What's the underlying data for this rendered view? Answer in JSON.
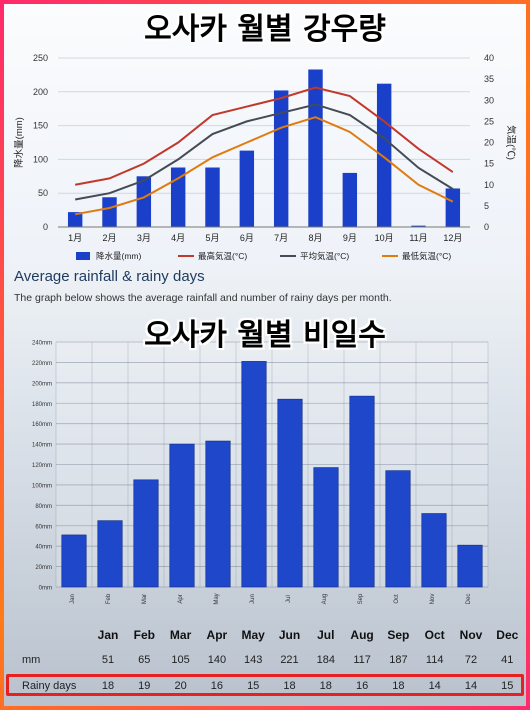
{
  "captions": {
    "top": "오사카 월별 강우량",
    "bottom": "오사카 월별 비일수"
  },
  "section": {
    "title": "Average rainfall & rainy days",
    "description": "The graph below shows the average rainfall and number of rainy days per month."
  },
  "colors": {
    "bar": "#1a3fc8",
    "max_temp": "#c0392b",
    "avg_temp": "#444b55",
    "min_temp": "#e07b10",
    "bar2": "#1e47c9",
    "highlight": "#e82020"
  },
  "chart_data": [
    {
      "type": "bar",
      "categories": [
        "1月",
        "2月",
        "3月",
        "4月",
        "5月",
        "6月",
        "7月",
        "8月",
        "9月",
        "10月",
        "11月",
        "12月"
      ],
      "series": [
        {
          "name": "降水量(mm)",
          "type": "bar",
          "axis": "left",
          "values": [
            22,
            44,
            75,
            88,
            88,
            113,
            202,
            233,
            80,
            212,
            2,
            57
          ]
        },
        {
          "name": "最高気温(°C)",
          "type": "line",
          "axis": "right",
          "values": [
            10,
            11.5,
            15,
            20,
            26.5,
            28.5,
            30.5,
            33,
            31,
            25,
            18.5,
            13
          ]
        },
        {
          "name": "平均気温(°C)",
          "type": "line",
          "axis": "right",
          "values": [
            6.5,
            8,
            11,
            16,
            22,
            25,
            27,
            29,
            26.5,
            21,
            14,
            9
          ]
        },
        {
          "name": "最低気温(°C)",
          "type": "line",
          "axis": "right",
          "values": [
            3,
            4.5,
            7,
            11.5,
            16.5,
            20,
            23.5,
            26,
            22.5,
            16.5,
            10,
            6
          ]
        }
      ],
      "ylim_left": [
        0,
        250
      ],
      "yticks_left": [
        "0",
        "50",
        "100",
        "150",
        "200",
        "250"
      ],
      "ylabel_left": "降水量(mm)",
      "ylim_right": [
        0,
        40
      ],
      "yticks_right": [
        "0",
        "5",
        "10",
        "15",
        "20",
        "25",
        "30",
        "35",
        "40"
      ],
      "ylabel_right": "気温(℃)",
      "legend": [
        "降水量(mm)",
        "最高気温(°C)",
        "平均気温(°C)",
        "最低気温(°C)"
      ],
      "legend_position": "bottom",
      "grid": true
    },
    {
      "type": "bar",
      "categories": [
        "Jan",
        "Feb",
        "Mar",
        "Apr",
        "May",
        "Jun",
        "Jul",
        "Aug",
        "Sep",
        "Oct",
        "Nov",
        "Dec"
      ],
      "series": [
        {
          "values": [
            51,
            65,
            105,
            140,
            143,
            221,
            184,
            117,
            187,
            114,
            72,
            41
          ]
        }
      ],
      "ylim": [
        0,
        240
      ],
      "yticks": [
        "0mm",
        "20mm",
        "40mm",
        "60mm",
        "80mm",
        "100mm",
        "120mm",
        "140mm",
        "160mm",
        "180mm",
        "200mm",
        "220mm",
        "240mm"
      ],
      "grid": true
    }
  ],
  "table": {
    "months": [
      "Jan",
      "Feb",
      "Mar",
      "Apr",
      "May",
      "Jun",
      "Jul",
      "Aug",
      "Sep",
      "Oct",
      "Nov",
      "Dec"
    ],
    "mm_label": "mm",
    "mm": [
      "51",
      "65",
      "105",
      "140",
      "143",
      "221",
      "184",
      "117",
      "187",
      "114",
      "72",
      "41"
    ],
    "rainy_label": "Rainy days",
    "rainy": [
      "18",
      "19",
      "20",
      "16",
      "15",
      "18",
      "18",
      "16",
      "18",
      "14",
      "14",
      "15"
    ]
  }
}
